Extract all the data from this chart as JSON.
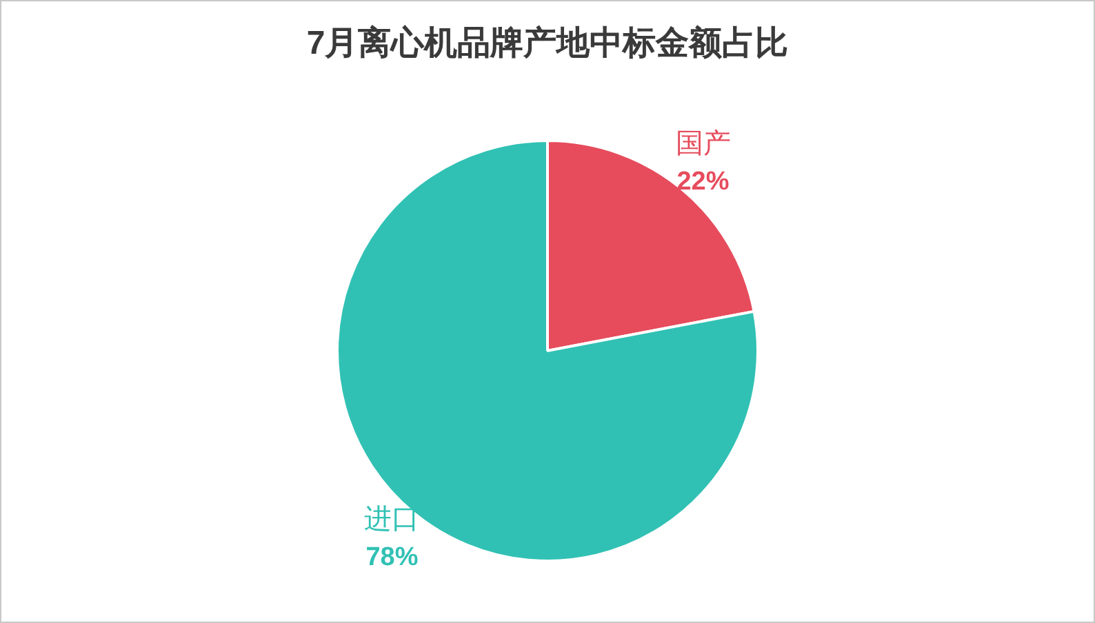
{
  "chart_data": {
    "type": "pie",
    "title": "7月离心机品牌产地中标金额占比",
    "categories": [
      "国产",
      "进口"
    ],
    "values": [
      22,
      78
    ],
    "value_labels": [
      "22%",
      "78%"
    ],
    "colors": [
      "#e64c5c",
      "#30c1b4"
    ],
    "legend": false
  }
}
